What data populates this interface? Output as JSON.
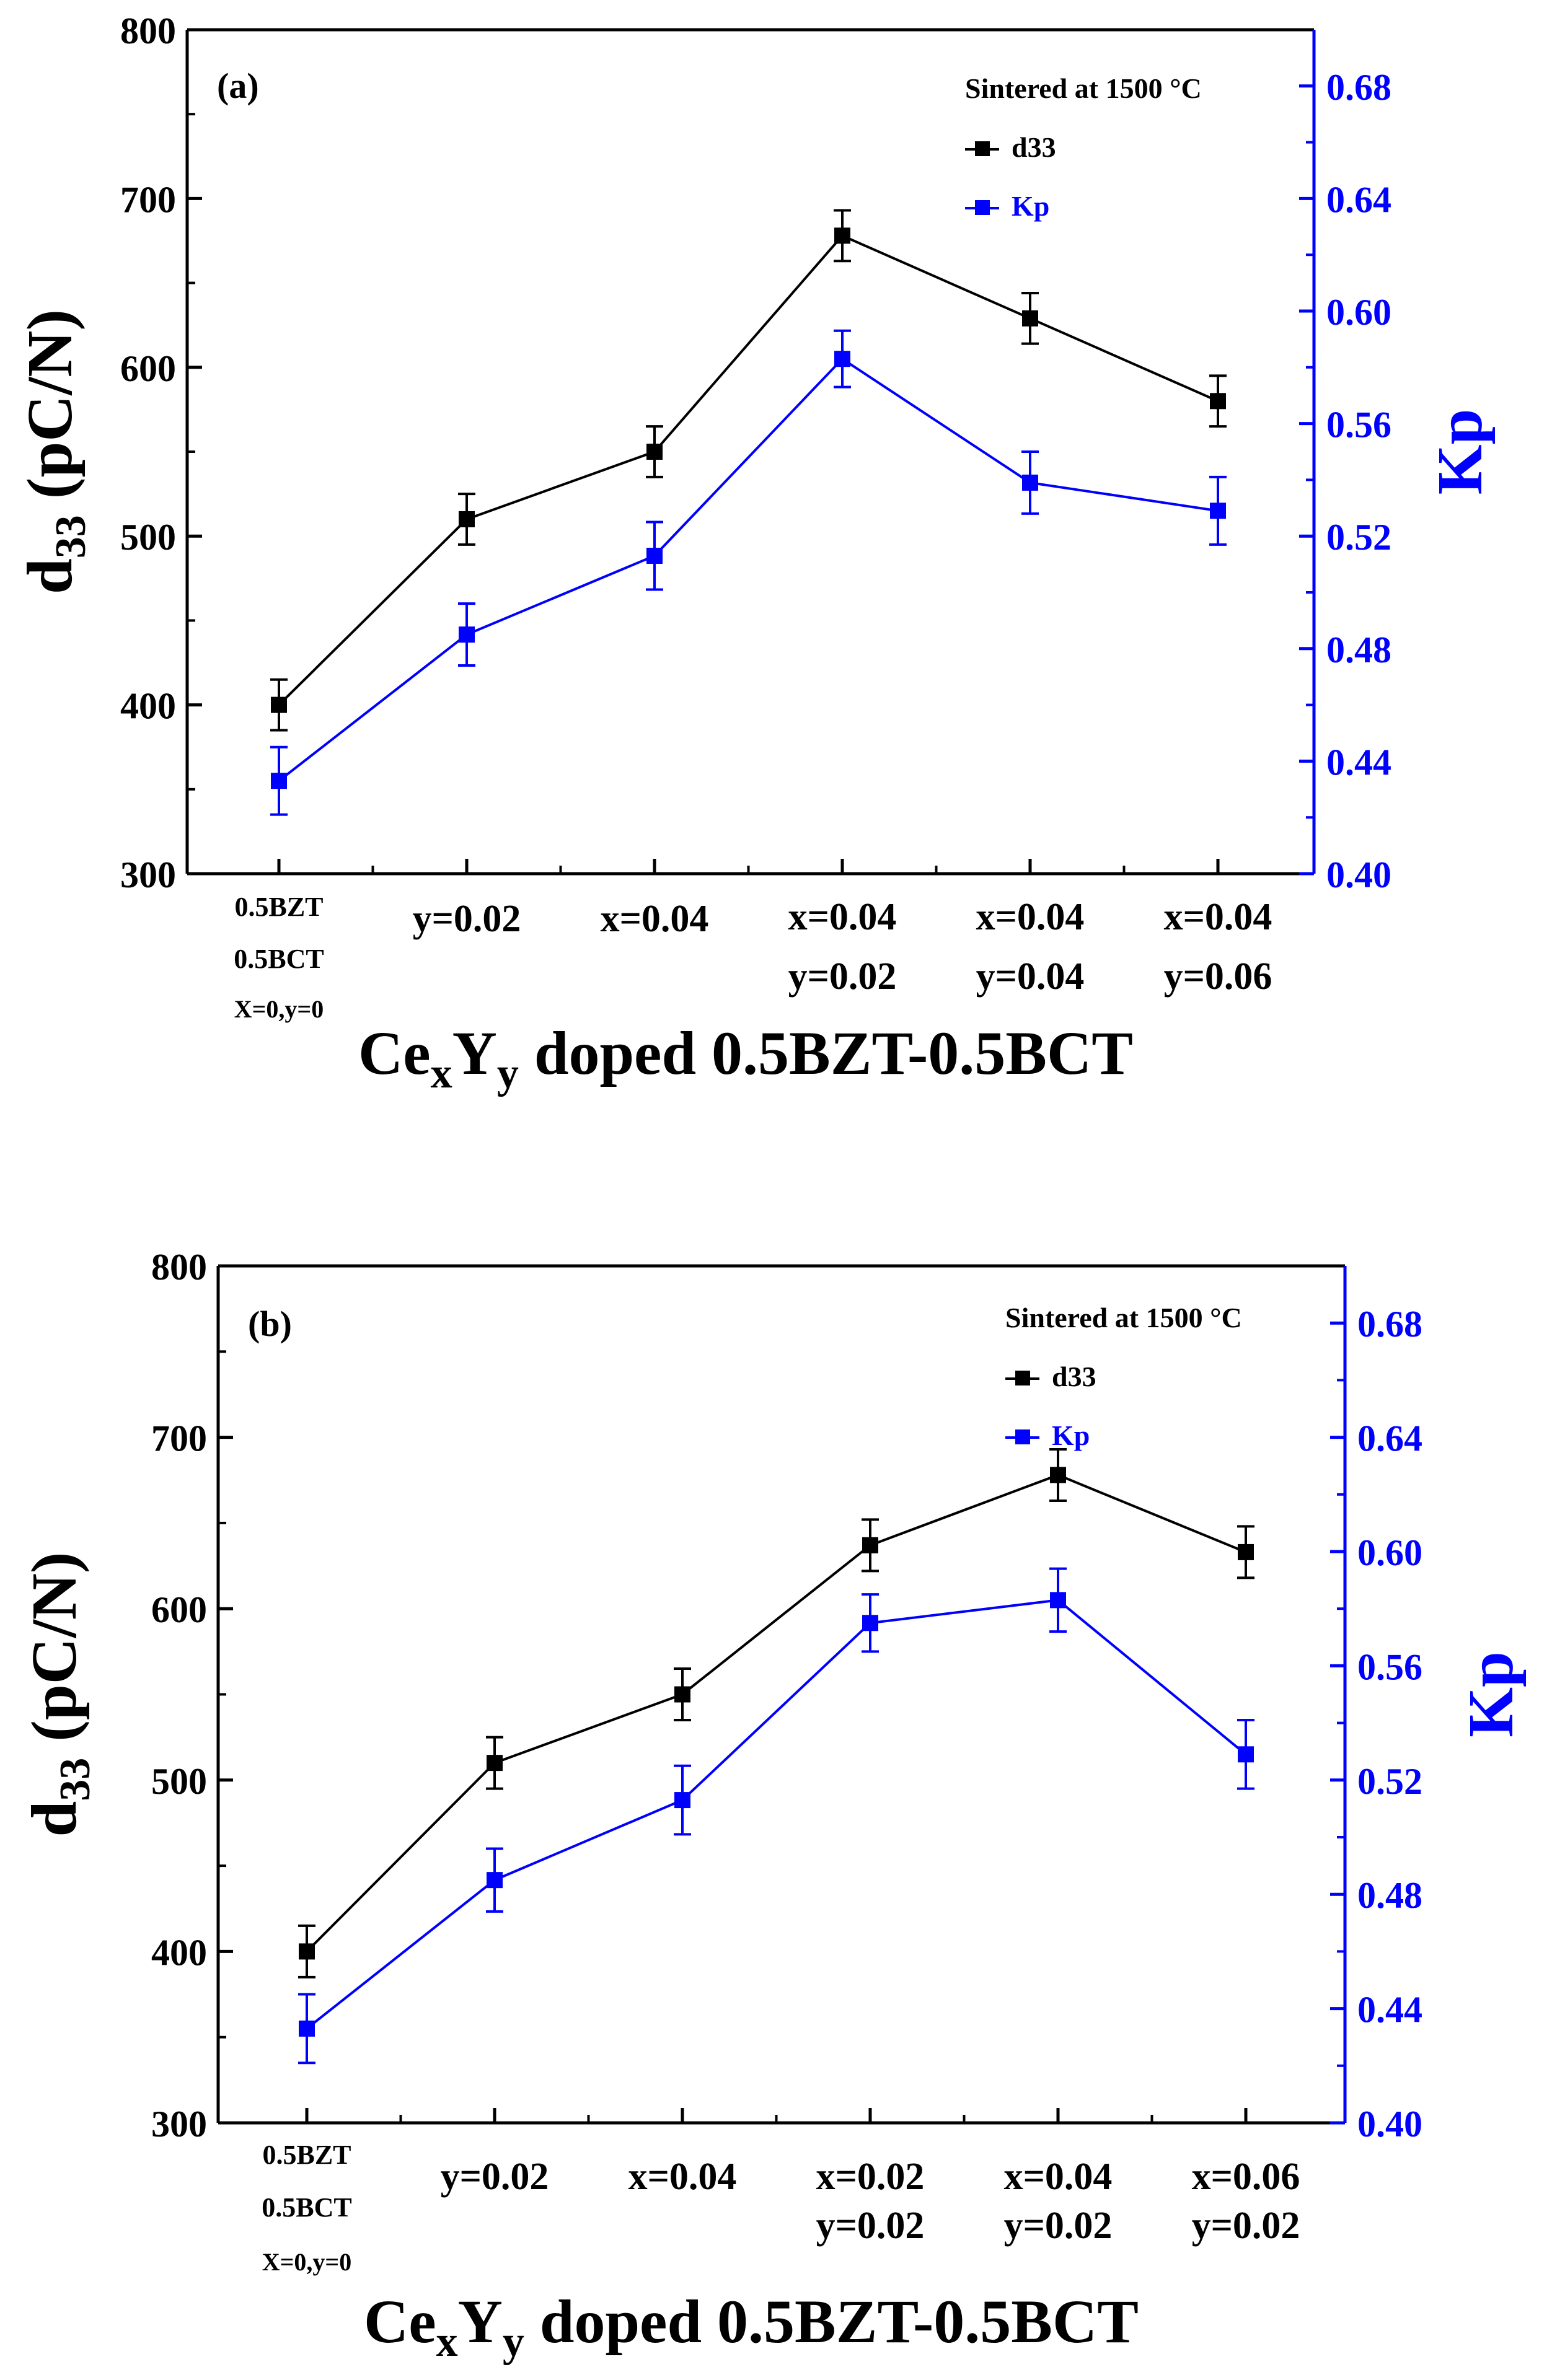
{
  "chart_data": [
    {
      "type": "line",
      "panel": "(a)",
      "annotation": "Sintered at 1500 °C",
      "xlabel_main": "Ce",
      "xlabel_sub1": "x",
      "xlabel_mid": "Y",
      "xlabel_sub2": "y",
      "xlabel_rest": " doped 0.5BZT-0.5BCT",
      "ylabel_main": "d",
      "ylabel_sub": "33",
      "ylabel_rest": " (pC/N)",
      "y2label": "Kp",
      "categories": [
        [
          "0.5BZT",
          "0.5BCT",
          "X=0,y=0"
        ],
        [
          "y=0.02"
        ],
        [
          "x=0.04"
        ],
        [
          "x=0.04",
          "y=0.02"
        ],
        [
          "x=0.04",
          "y=0.04"
        ],
        [
          "x=0.04",
          "y=0.06"
        ]
      ],
      "ylim": [
        300,
        800
      ],
      "yticks": [
        "300",
        "400",
        "500",
        "600",
        "700",
        "800"
      ],
      "y2lim": [
        0.4,
        0.7
      ],
      "y2ticks": [
        "0.40",
        "0.44",
        "0.48",
        "0.52",
        "0.56",
        "0.60",
        "0.64",
        "0.68"
      ],
      "series": [
        {
          "name": "d33",
          "axis": "left",
          "color": "#000000",
          "values": [
            400,
            510,
            550,
            678,
            629,
            580
          ],
          "errors": [
            15,
            15,
            15,
            15,
            15,
            15
          ]
        },
        {
          "name": "Kp",
          "axis": "right",
          "color": "#0000ff",
          "values": [
            0.433,
            0.485,
            0.513,
            0.583,
            0.539,
            0.529
          ],
          "errors": [
            0.012,
            0.011,
            0.012,
            0.01,
            0.011,
            0.012
          ]
        }
      ]
    },
    {
      "type": "line",
      "panel": "(b)",
      "annotation": "Sintered at 1500 °C",
      "xlabel_main": "Ce",
      "xlabel_sub1": "x",
      "xlabel_mid": "Y",
      "xlabel_sub2": "y",
      "xlabel_rest": " doped 0.5BZT-0.5BCT",
      "ylabel_main": "d",
      "ylabel_sub": "33",
      "ylabel_rest": " (pC/N)",
      "y2label": "Kp",
      "categories": [
        [
          "0.5BZT",
          "0.5BCT",
          "X=0,y=0"
        ],
        [
          "y=0.02"
        ],
        [
          "x=0.04"
        ],
        [
          "x=0.02",
          "y=0.02"
        ],
        [
          "x=0.04",
          "y=0.02"
        ],
        [
          "x=0.06",
          "y=0.02"
        ]
      ],
      "ylim": [
        300,
        800
      ],
      "yticks": [
        "300",
        "400",
        "500",
        "600",
        "700",
        "800"
      ],
      "y2lim": [
        0.4,
        0.7
      ],
      "y2ticks": [
        "0.40",
        "0.44",
        "0.48",
        "0.52",
        "0.56",
        "0.60",
        "0.64",
        "0.68"
      ],
      "series": [
        {
          "name": "d33",
          "axis": "left",
          "color": "#000000",
          "values": [
            400,
            510,
            550,
            637,
            678,
            633
          ],
          "errors": [
            15,
            15,
            15,
            15,
            15,
            15
          ]
        },
        {
          "name": "Kp",
          "axis": "right",
          "color": "#0000ff",
          "values": [
            0.433,
            0.485,
            0.513,
            0.575,
            0.583,
            0.529
          ],
          "errors": [
            0.012,
            0.011,
            0.012,
            0.01,
            0.011,
            0.012
          ]
        }
      ]
    }
  ]
}
